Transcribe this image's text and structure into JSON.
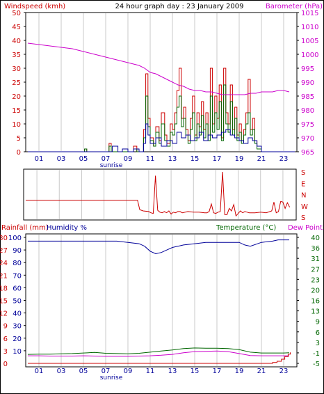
{
  "chart_data": [
    {
      "type": "line",
      "title": "24 hour graph day : 23 January 2009",
      "left_axis_label": "Windspeed (kmh)",
      "right_axis_label": "Barometer (hPa)",
      "ylim": [
        0,
        50
      ],
      "y_ticks": [
        "0",
        "5",
        "10",
        "15",
        "20",
        "25",
        "30",
        "35",
        "40",
        "45",
        "50"
      ],
      "y2lim": [
        965,
        1015
      ],
      "y2_ticks": [
        "965",
        "970",
        "975",
        "980",
        "985",
        "990",
        "995",
        "1000",
        "1005",
        "1010",
        "1015"
      ],
      "x_ticks": [
        "01",
        "03",
        "05",
        "07",
        "09",
        "11",
        "13",
        "15",
        "17",
        "19",
        "21",
        "23"
      ],
      "x_annotation": "sunrise",
      "grid": true,
      "series": [
        {
          "name": "Barometer",
          "axis": "right",
          "color": "#cc00cc",
          "x": [
            0,
            1,
            2,
            3,
            4,
            5,
            6,
            7,
            8,
            9,
            10,
            10.5,
            11,
            11.5,
            12,
            12.5,
            13,
            13.5,
            14,
            14.5,
            15,
            15.5,
            16,
            16.5,
            17,
            17.5,
            18,
            18.5,
            19,
            19.5,
            20,
            20.5,
            21,
            21.5,
            22,
            22.5,
            23,
            23.5
          ],
          "values": [
            1004,
            1003.5,
            1003,
            1002.5,
            1002,
            1001,
            1000,
            999,
            998,
            997,
            996,
            995,
            993.5,
            993,
            992,
            991,
            990,
            989,
            988.5,
            987.5,
            987,
            987,
            986.5,
            986.5,
            986,
            985.5,
            985.5,
            985.5,
            985.5,
            985.5,
            986,
            986,
            986.5,
            986.5,
            986.5,
            987,
            987,
            986.5
          ]
        },
        {
          "name": "Wind gust",
          "axis": "left",
          "color": "#cc0000",
          "x": [
            0,
            5,
            5.1,
            5.3,
            5.5,
            7.2,
            7.3,
            7.5,
            8.1,
            8.3,
            8.5,
            9,
            9.3,
            9.5,
            9.8,
            10,
            10.4,
            10.6,
            10.8,
            11,
            11.3,
            11.5,
            11.8,
            12,
            12.3,
            12.5,
            12.8,
            13,
            13.2,
            13.4,
            13.6,
            13.8,
            14,
            14.2,
            14.4,
            14.6,
            14.8,
            15,
            15.2,
            15.4,
            15.6,
            15.8,
            16,
            16.2,
            16.4,
            16.6,
            16.8,
            17,
            17.2,
            17.4,
            17.6,
            17.8,
            18,
            18.2,
            18.4,
            18.6,
            18.8,
            19,
            19.2,
            19.4,
            19.6,
            19.8,
            20,
            20.2,
            20.4,
            20.6,
            21,
            24
          ],
          "values": [
            0,
            0,
            1,
            0,
            0,
            0,
            3,
            0,
            0,
            0,
            0,
            0,
            0,
            2,
            0,
            0,
            8,
            28,
            12,
            5,
            2,
            9,
            4,
            14,
            6,
            3,
            10,
            8,
            14,
            22,
            30,
            12,
            16,
            8,
            4,
            12,
            20,
            6,
            14,
            9,
            18,
            8,
            14,
            6,
            30,
            10,
            20,
            12,
            24,
            5,
            30,
            14,
            10,
            24,
            8,
            16,
            6,
            10,
            4,
            8,
            14,
            26,
            8,
            12,
            4,
            2,
            0,
            0
          ]
        },
        {
          "name": "Wind speed",
          "axis": "left",
          "color": "#006600",
          "x": [
            0,
            5,
            5.1,
            5.3,
            5.5,
            7.2,
            7.3,
            7.5,
            8.1,
            8.3,
            8.5,
            9,
            9.3,
            9.5,
            9.8,
            10,
            10.4,
            10.6,
            10.8,
            11,
            11.3,
            11.5,
            11.8,
            12,
            12.3,
            12.5,
            12.8,
            13,
            13.2,
            13.4,
            13.6,
            13.8,
            14,
            14.2,
            14.4,
            14.6,
            14.8,
            15,
            15.2,
            15.4,
            15.6,
            15.8,
            16,
            16.2,
            16.4,
            16.6,
            16.8,
            17,
            17.2,
            17.4,
            17.6,
            17.8,
            18,
            18.2,
            18.4,
            18.6,
            18.8,
            19,
            19.2,
            19.4,
            19.6,
            19.8,
            20,
            20.2,
            20.4,
            20.6,
            21,
            24
          ],
          "values": [
            0,
            0,
            1,
            0,
            0,
            0,
            2,
            0,
            0,
            0,
            0,
            0,
            0,
            1,
            0,
            0,
            5,
            20,
            9,
            4,
            2,
            7,
            3,
            10,
            4,
            2,
            7,
            6,
            10,
            16,
            20,
            9,
            12,
            6,
            3,
            8,
            14,
            4,
            10,
            6,
            13,
            5,
            10,
            4,
            20,
            7,
            14,
            8,
            18,
            4,
            24,
            10,
            7,
            18,
            6,
            12,
            4,
            7,
            3,
            6,
            10,
            14,
            6,
            8,
            3,
            1,
            0,
            0
          ]
        },
        {
          "name": "Wind average",
          "axis": "left",
          "color": "#000099",
          "x": [
            0,
            5,
            6,
            7.4,
            7.6,
            8.1,
            8.3,
            8.5,
            9,
            9.5,
            10,
            10.4,
            10.6,
            10.8,
            11,
            11.5,
            12,
            12.5,
            13,
            13.4,
            13.8,
            14.2,
            14.6,
            15,
            15.4,
            15.8,
            16.2,
            16.6,
            17,
            17.4,
            17.8,
            18.2,
            18.6,
            19,
            19.4,
            19.8,
            20.2,
            20.6,
            21,
            24
          ],
          "values": [
            0,
            0,
            0,
            0,
            2,
            0,
            0,
            1,
            0,
            1,
            0,
            3,
            10,
            6,
            3,
            5,
            2,
            4,
            3,
            7,
            5,
            6,
            4,
            5,
            7,
            4,
            6,
            5,
            6,
            7,
            8,
            6,
            5,
            4,
            3,
            5,
            4,
            2,
            0,
            0
          ]
        }
      ]
    },
    {
      "type": "line",
      "right_labels": [
        "S",
        "E",
        "N",
        "W",
        "S"
      ],
      "series": [
        {
          "name": "Wind direction",
          "color": "#cc0000",
          "x": [
            0,
            1,
            2,
            3,
            4,
            5,
            6,
            7,
            8,
            9,
            10,
            10.2,
            10.5,
            11,
            11.2,
            11.4,
            11.6,
            11.8,
            12,
            12.2,
            12.4,
            12.6,
            12.8,
            13,
            13.2,
            13.4,
            13.6,
            13.8,
            14,
            14.5,
            15,
            15.5,
            16,
            16.2,
            16.4,
            16.6,
            16.8,
            17,
            17.2,
            17.4,
            17.6,
            17.8,
            18,
            18.2,
            18.4,
            18.6,
            18.8,
            19,
            19.2,
            19.4,
            19.6,
            19.8,
            20,
            20.5,
            21,
            21.5,
            22,
            22.2,
            22.4,
            22.6,
            22.8,
            23,
            23.2,
            23.4,
            23.6
          ],
          "values": [
            315,
            315,
            315,
            315,
            315,
            315,
            315,
            315,
            315,
            315,
            315,
            240,
            230,
            225,
            215,
            210,
            150,
            235,
            220,
            215,
            225,
            215,
            230,
            205,
            220,
            215,
            225,
            225,
            215,
            225,
            220,
            220,
            215,
            215,
            225,
            285,
            215,
            210,
            220,
            225,
            180,
            200,
            200,
            250,
            230,
            280,
            190,
            210,
            230,
            215,
            225,
            220,
            215,
            215,
            220,
            215,
            230,
            300,
            215,
            225,
            305,
            300,
            250,
            295,
            260
          ]
        }
      ]
    },
    {
      "type": "line",
      "left_axis_labels": [
        "Rainfall (mm)",
        "Humidity %"
      ],
      "right_axis_labels": [
        "Temperature (°C)",
        "Dew Point"
      ],
      "rain_ticks": [
        "0",
        "3",
        "6",
        "9",
        "12",
        "15",
        "18",
        "21",
        "24",
        "27",
        "30"
      ],
      "humidity_ticks": [
        "10",
        "20",
        "30",
        "40",
        "50",
        "60",
        "70",
        "80",
        "90",
        "100"
      ],
      "temp_ticks": [
        "-5",
        "-1",
        "3",
        "6",
        "9",
        "13",
        "16",
        "20",
        "23",
        "27",
        "31",
        "36",
        "40"
      ],
      "temp_range": [
        -5,
        40
      ],
      "x_ticks": [
        "01",
        "03",
        "05",
        "07",
        "09",
        "11",
        "13",
        "15",
        "17",
        "19",
        "21",
        "23"
      ],
      "x_annotation": "sunrise",
      "grid": true,
      "series": [
        {
          "name": "Humidity",
          "axis": "humidity",
          "color": "#000099",
          "x": [
            0,
            1,
            2,
            3,
            4,
            5,
            6,
            7,
            8,
            9,
            10,
            10.5,
            11,
            11.5,
            12,
            12.5,
            13,
            13.5,
            14,
            15,
            16,
            17,
            18,
            19,
            19.5,
            20,
            21,
            22,
            22.5,
            23,
            23.5
          ],
          "values": [
            97,
            97,
            97,
            97,
            97,
            97,
            97,
            97,
            97,
            96,
            95,
            93,
            89,
            87,
            88,
            90,
            92,
            93,
            94,
            95,
            96,
            96,
            96,
            96,
            94,
            93,
            96,
            97,
            98,
            98,
            98
          ]
        },
        {
          "name": "Temperature",
          "axis": "temp",
          "color": "#006600",
          "x": [
            0,
            1,
            2,
            3,
            4,
            5,
            6,
            7,
            8,
            9,
            10,
            11,
            12,
            13,
            14,
            15,
            16,
            17,
            18,
            19,
            20,
            21,
            22,
            23,
            23.5
          ],
          "values": [
            -1.8,
            -1.7,
            -1.7,
            -1.6,
            -1.5,
            -1.3,
            -1.1,
            -1.4,
            -1.5,
            -1.6,
            -1.4,
            -1.0,
            -0.6,
            -0.2,
            0.3,
            0.5,
            0.4,
            0.4,
            0.3,
            -0.1,
            -1.0,
            -1.3,
            -1.3,
            -1.3,
            -1.2
          ]
        },
        {
          "name": "Dew point",
          "axis": "temp",
          "color": "#cc00cc",
          "x": [
            0,
            1,
            2,
            3,
            4,
            5,
            6,
            7,
            8,
            9,
            10,
            11,
            12,
            13,
            14,
            15,
            16,
            17,
            18,
            19,
            20,
            21,
            22,
            23,
            23.5
          ],
          "values": [
            -2.3,
            -2.3,
            -2.4,
            -2.4,
            -2.4,
            -2.3,
            -2.4,
            -2.5,
            -2.5,
            -2.5,
            -2.4,
            -2.3,
            -2.1,
            -1.8,
            -1.2,
            -0.8,
            -0.7,
            -0.6,
            -0.8,
            -1.5,
            -2.2,
            -2.3,
            -2.3,
            -2.3,
            -2.3
          ]
        },
        {
          "name": "Rainfall",
          "axis": "rain",
          "color": "#cc0000",
          "x": [
            0,
            21.5,
            22,
            22.4,
            22.8,
            23.1,
            23.4,
            23.6
          ],
          "values": [
            0,
            0,
            0.2,
            0.5,
            1,
            1.6,
            2.2,
            2.6
          ]
        }
      ]
    }
  ],
  "colors": {
    "wind_label": "#cc0000",
    "baro_label": "#cc00cc",
    "wind_tick": "#cc0000",
    "baro_tick": "#cc00cc",
    "rain_tick": "#cc0000",
    "humidity_tick": "#000099",
    "temp_tick": "#006600",
    "humidity_label": "#000099",
    "temp_label": "#006600",
    "dew_label": "#cc00cc",
    "title": "#000000",
    "axis_hour": "#000099",
    "sunrise": "#000099"
  }
}
